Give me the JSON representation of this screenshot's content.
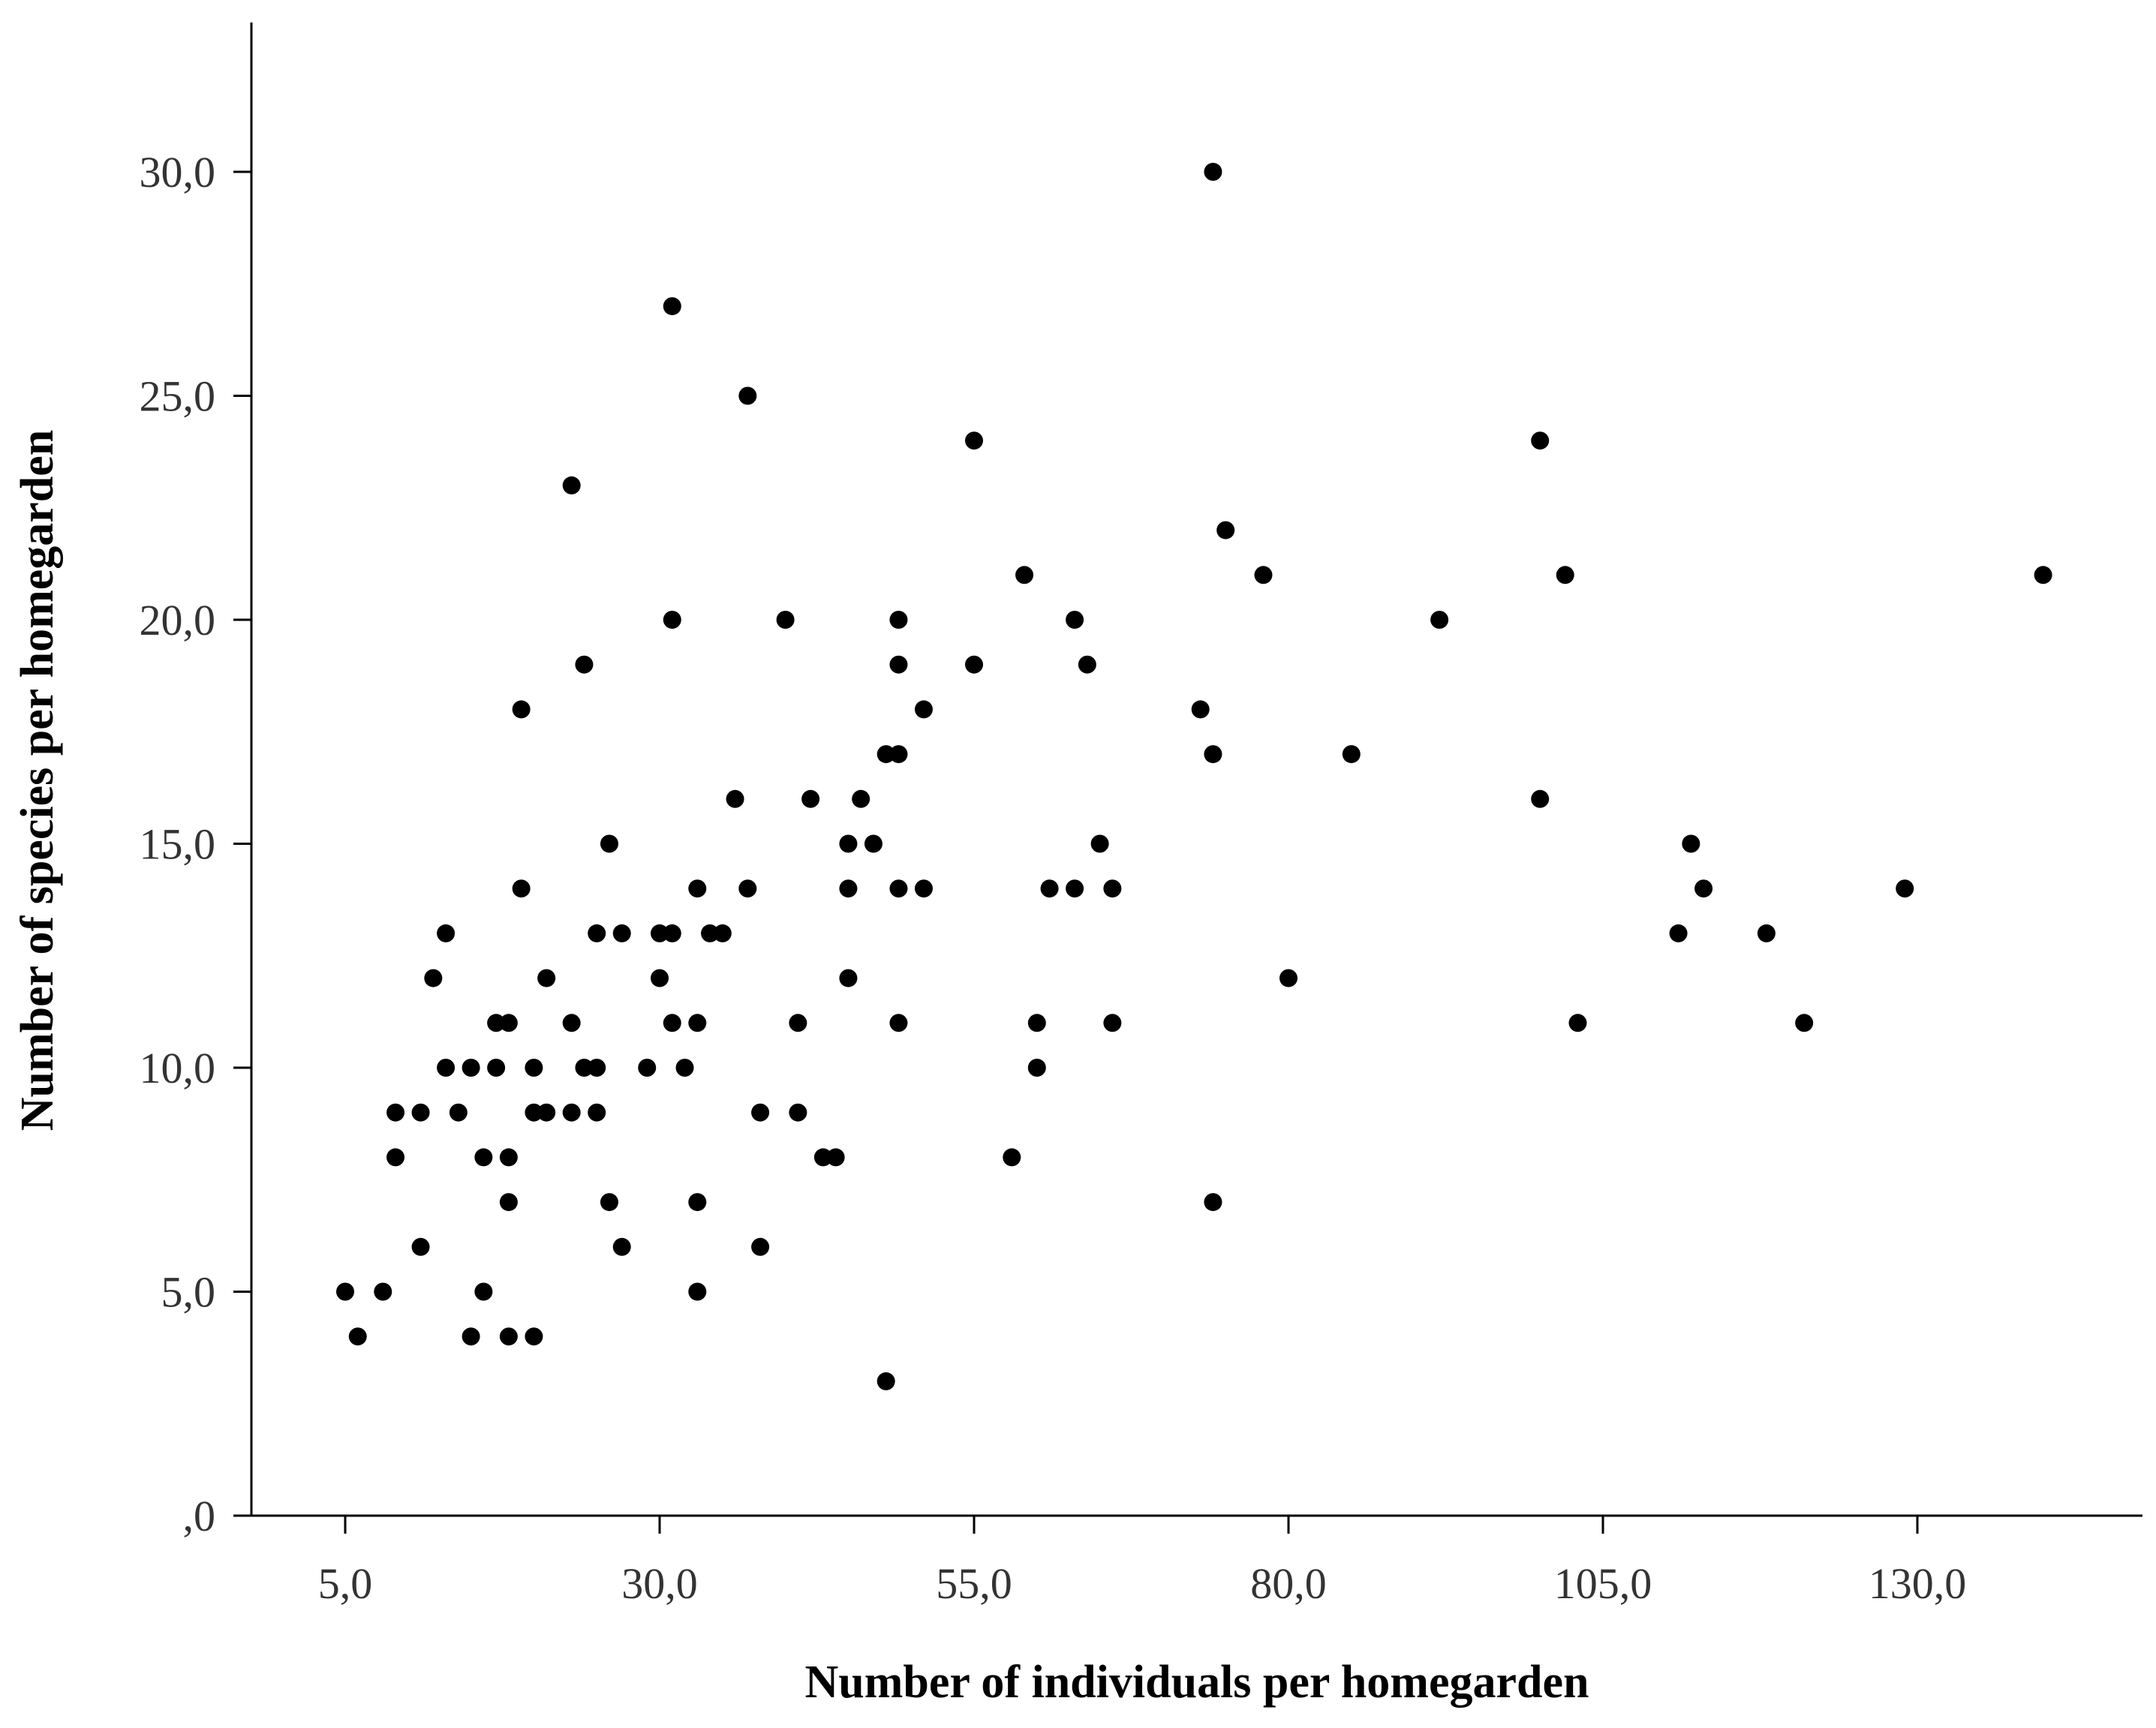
{
  "chart_data": {
    "type": "scatter",
    "title": "",
    "xlabel": "Number of  individuals per homegarden",
    "ylabel": "Number of species per homegarden",
    "xlim": [
      -2.6,
      147.5
    ],
    "ylim": [
      0,
      33.3
    ],
    "x_ticks": [
      5,
      30,
      55,
      80,
      105,
      130
    ],
    "x_tick_labels": [
      "5,0",
      "30,0",
      "55,0",
      "80,0",
      "105,0",
      "130,0"
    ],
    "y_ticks": [
      0,
      5,
      10,
      15,
      20,
      25,
      30
    ],
    "y_tick_labels": [
      ",0",
      "5,0",
      "10,0",
      "15,0",
      "20,0",
      "25,0",
      "30,0"
    ],
    "grid": false,
    "legend": "none",
    "marker_color": "#000000",
    "points": [
      [
        5,
        5
      ],
      [
        6,
        4
      ],
      [
        8,
        5
      ],
      [
        9,
        8
      ],
      [
        9,
        9
      ],
      [
        11,
        6
      ],
      [
        11,
        9
      ],
      [
        12,
        12
      ],
      [
        13,
        10
      ],
      [
        13,
        13
      ],
      [
        14,
        9
      ],
      [
        15,
        4
      ],
      [
        15,
        10
      ],
      [
        16,
        5
      ],
      [
        16,
        8
      ],
      [
        17,
        10
      ],
      [
        17,
        11
      ],
      [
        18,
        4
      ],
      [
        18,
        7
      ],
      [
        18,
        8
      ],
      [
        18,
        11
      ],
      [
        19,
        14
      ],
      [
        19,
        18
      ],
      [
        20,
        4
      ],
      [
        20,
        9
      ],
      [
        20,
        10
      ],
      [
        21,
        9
      ],
      [
        21,
        12
      ],
      [
        23,
        9
      ],
      [
        23,
        11
      ],
      [
        23,
        23
      ],
      [
        24,
        10
      ],
      [
        24,
        19
      ],
      [
        25,
        9
      ],
      [
        25,
        10
      ],
      [
        25,
        13
      ],
      [
        26,
        7
      ],
      [
        26,
        15
      ],
      [
        27,
        6
      ],
      [
        27,
        13
      ],
      [
        29,
        10
      ],
      [
        30,
        12
      ],
      [
        30,
        13
      ],
      [
        31,
        11
      ],
      [
        31,
        13
      ],
      [
        31,
        20
      ],
      [
        31,
        27
      ],
      [
        32,
        10
      ],
      [
        33,
        5
      ],
      [
        33,
        7
      ],
      [
        33,
        11
      ],
      [
        33,
        14
      ],
      [
        34,
        13
      ],
      [
        35,
        13
      ],
      [
        36,
        16
      ],
      [
        37,
        14
      ],
      [
        37,
        25
      ],
      [
        38,
        6
      ],
      [
        38,
        9
      ],
      [
        40,
        20
      ],
      [
        41,
        9
      ],
      [
        41,
        11
      ],
      [
        42,
        16
      ],
      [
        43,
        8
      ],
      [
        44,
        8
      ],
      [
        45,
        12
      ],
      [
        45,
        14
      ],
      [
        45,
        15
      ],
      [
        46,
        16
      ],
      [
        47,
        15
      ],
      [
        48,
        3
      ],
      [
        48,
        17
      ],
      [
        49,
        11
      ],
      [
        49,
        14
      ],
      [
        49,
        17
      ],
      [
        49,
        19
      ],
      [
        49,
        20
      ],
      [
        51,
        14
      ],
      [
        51,
        18
      ],
      [
        55,
        19
      ],
      [
        55,
        24
      ],
      [
        58,
        8
      ],
      [
        59,
        21
      ],
      [
        60,
        10
      ],
      [
        60,
        11
      ],
      [
        61,
        14
      ],
      [
        63,
        14
      ],
      [
        63,
        20
      ],
      [
        64,
        19
      ],
      [
        65,
        15
      ],
      [
        66,
        11
      ],
      [
        66,
        14
      ],
      [
        73,
        18
      ],
      [
        74,
        7
      ],
      [
        74,
        17
      ],
      [
        74,
        30
      ],
      [
        75,
        22
      ],
      [
        78,
        21
      ],
      [
        80,
        12
      ],
      [
        85,
        17
      ],
      [
        92,
        20
      ],
      [
        100,
        16
      ],
      [
        100,
        24
      ],
      [
        102,
        21
      ],
      [
        103,
        11
      ],
      [
        111,
        13
      ],
      [
        112,
        15
      ],
      [
        113,
        14
      ],
      [
        118,
        13
      ],
      [
        121,
        11
      ],
      [
        129,
        14
      ],
      [
        140,
        21
      ]
    ]
  }
}
